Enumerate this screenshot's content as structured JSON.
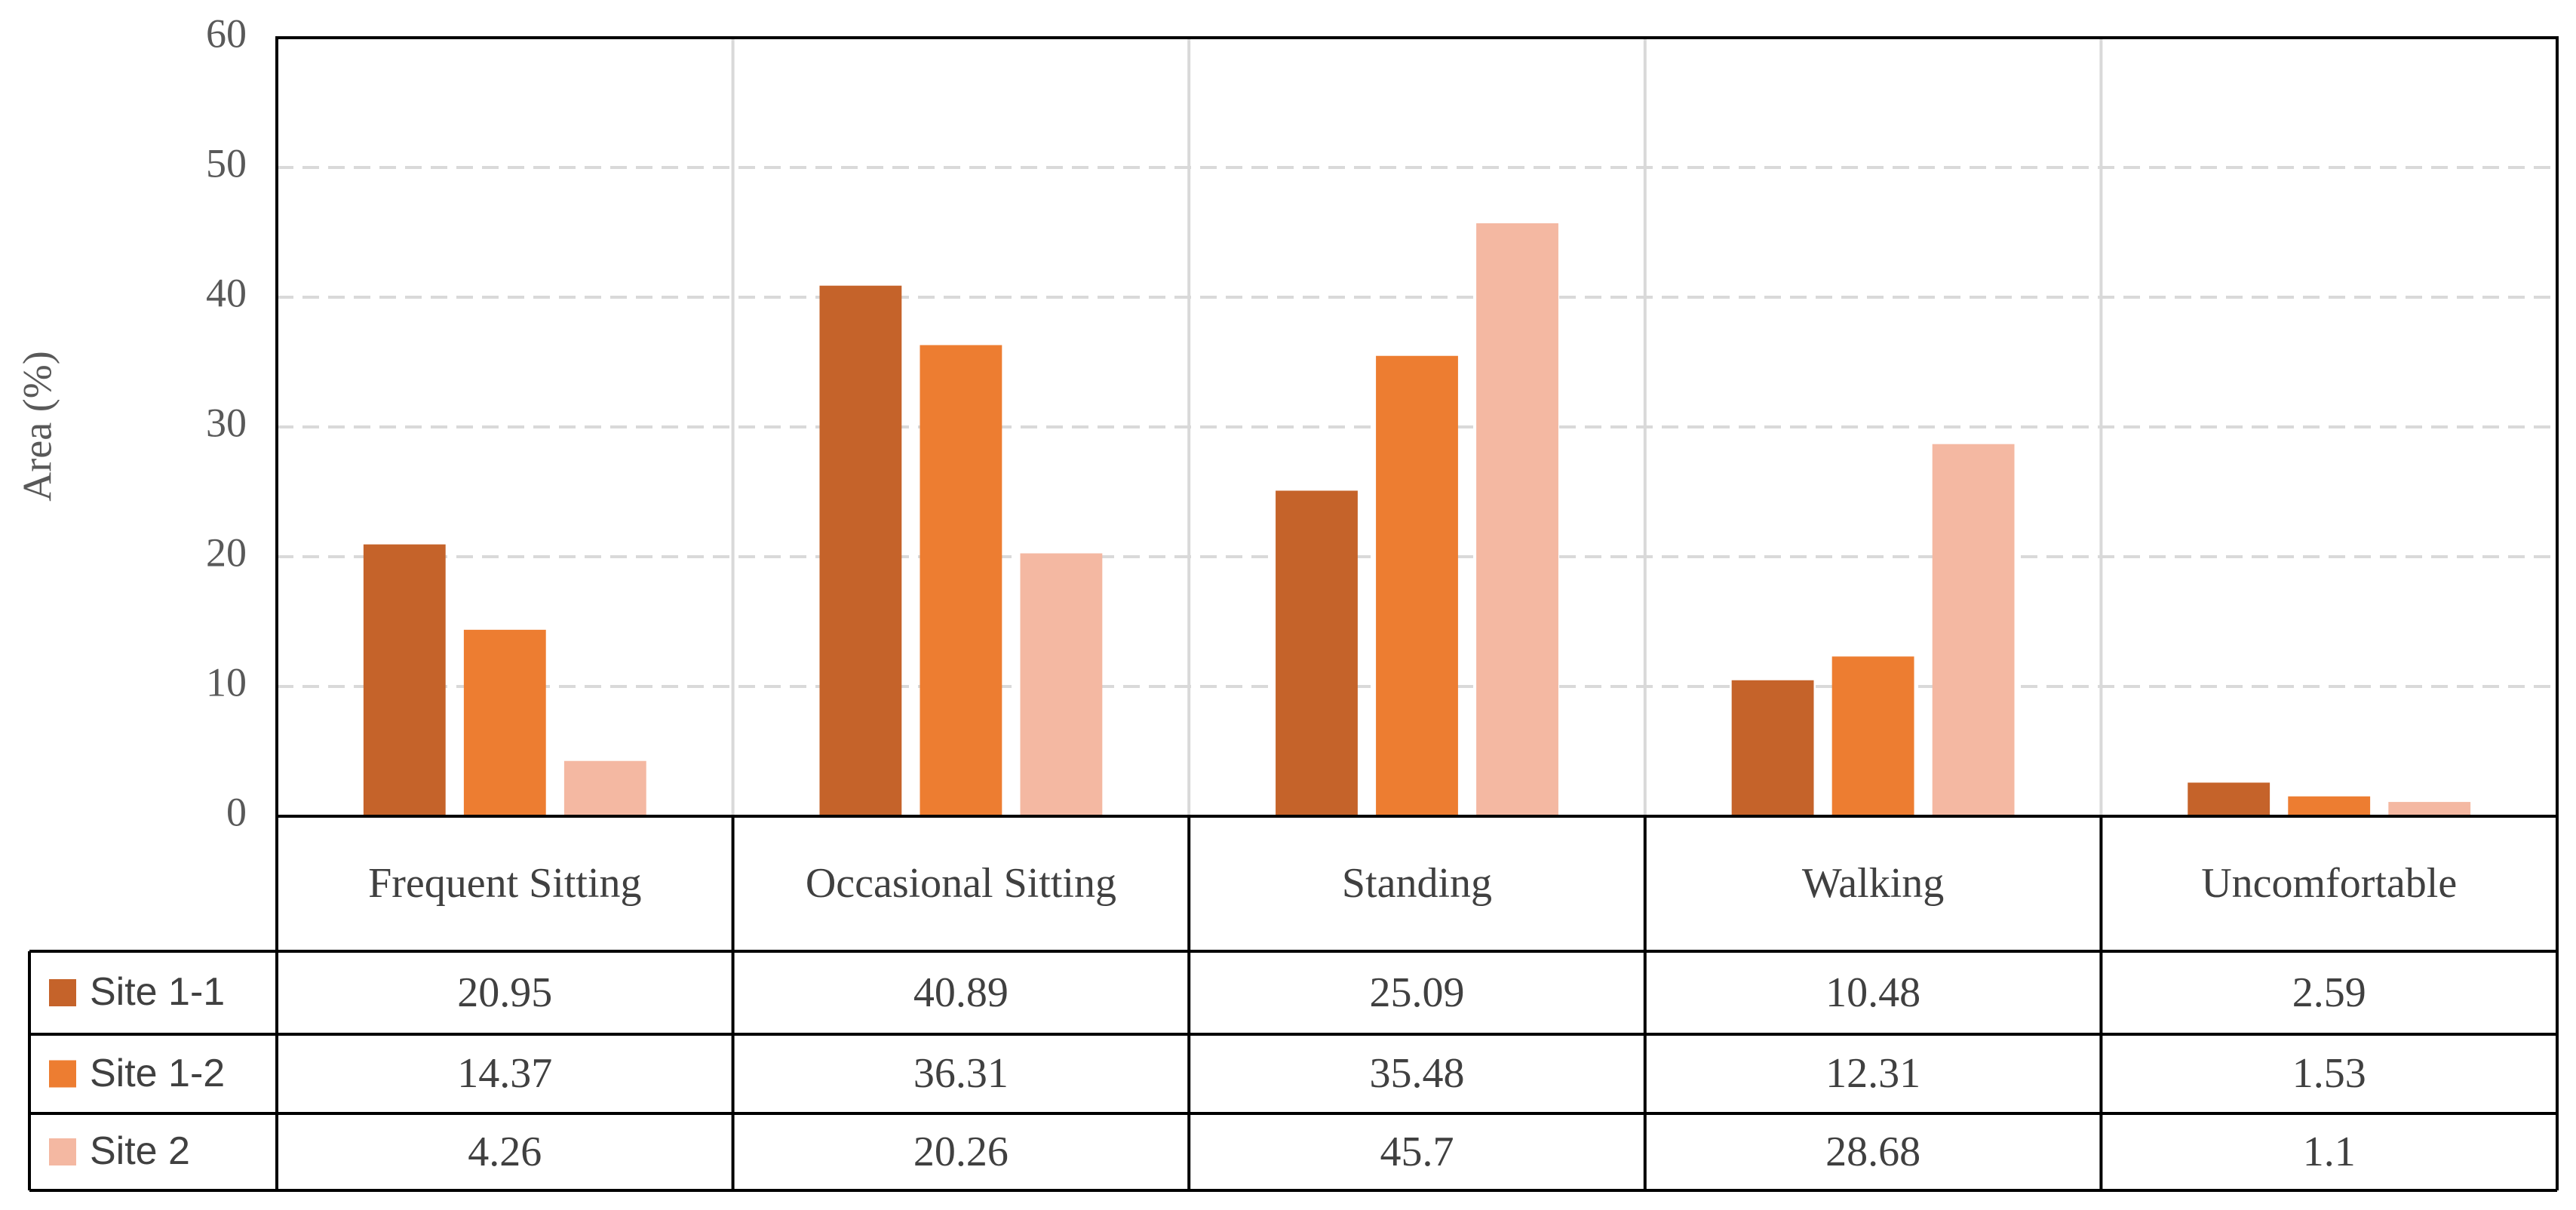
{
  "chart_data": {
    "type": "bar",
    "y_axis_label": "Area (%)",
    "categories": [
      "Frequent Sitting",
      "Occasional Sitting",
      "Standing",
      "Walking",
      "Uncomfortable"
    ],
    "series": [
      {
        "name": "Site 1-1",
        "color": "#c5632a",
        "values": [
          20.95,
          40.89,
          25.09,
          10.48,
          2.59
        ]
      },
      {
        "name": "Site 1-2",
        "color": "#ed7d31",
        "values": [
          14.37,
          36.31,
          35.48,
          12.31,
          1.53
        ]
      },
      {
        "name": "Site 2",
        "color": "#f4b8a2",
        "values": [
          4.26,
          20.26,
          45.7,
          28.68,
          1.1
        ]
      }
    ],
    "ylim": [
      0,
      60
    ],
    "yticks": [
      0,
      10,
      20,
      30,
      40,
      50,
      60
    ],
    "grid": true
  }
}
